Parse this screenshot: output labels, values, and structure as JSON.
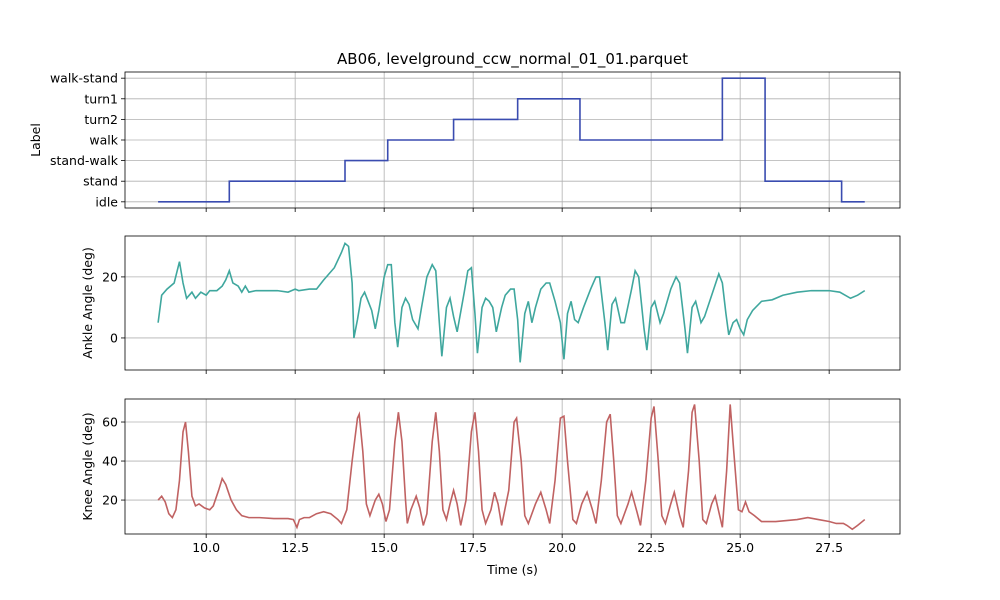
{
  "chart_data": [
    {
      "type": "line",
      "drawstyle": "steps-post",
      "title": "AB06, levelground_ccw_normal_01_01.parquet",
      "ylabel": "Label",
      "color": "#3a4cb0",
      "grid": true,
      "x": [
        8.65,
        10.65,
        13.9,
        15.1,
        16.95,
        18.75,
        20.5,
        24.5,
        25.7,
        27.85,
        28.5
      ],
      "values": [
        0,
        1,
        2,
        3,
        4,
        5,
        3,
        6,
        1,
        0,
        0
      ],
      "xlim": [
        7.72,
        29.49
      ],
      "ylim": [
        -0.3,
        6.3
      ],
      "yticks": [
        {
          "value": 0,
          "label": "idle"
        },
        {
          "value": 1,
          "label": "stand"
        },
        {
          "value": 2,
          "label": "stand-walk"
        },
        {
          "value": 3,
          "label": "walk"
        },
        {
          "value": 4,
          "label": "turn2"
        },
        {
          "value": 5,
          "label": "turn1"
        },
        {
          "value": 6,
          "label": "walk-stand"
        }
      ]
    },
    {
      "type": "line",
      "ylabel": "Ankle Angle (deg)",
      "color": "#3fa79e",
      "grid": true,
      "x": [
        8.65,
        8.75,
        8.9,
        9.1,
        9.25,
        9.35,
        9.45,
        9.6,
        9.7,
        9.85,
        10.0,
        10.1,
        10.3,
        10.45,
        10.55,
        10.65,
        10.75,
        10.9,
        11.0,
        11.1,
        11.2,
        11.4,
        11.7,
        12.0,
        12.3,
        12.5,
        12.6,
        12.9,
        13.1,
        13.3,
        13.6,
        13.8,
        13.9,
        14.0,
        14.1,
        14.15,
        14.25,
        14.35,
        14.45,
        14.55,
        14.65,
        14.75,
        14.85,
        15.0,
        15.1,
        15.2,
        15.3,
        15.38,
        15.5,
        15.6,
        15.7,
        15.8,
        15.95,
        16.05,
        16.2,
        16.35,
        16.45,
        16.55,
        16.62,
        16.75,
        16.85,
        16.95,
        17.05,
        17.25,
        17.35,
        17.45,
        17.55,
        17.62,
        17.75,
        17.85,
        17.95,
        18.05,
        18.15,
        18.3,
        18.4,
        18.55,
        18.65,
        18.75,
        18.82,
        18.95,
        19.05,
        19.15,
        19.25,
        19.4,
        19.55,
        19.65,
        19.8,
        19.95,
        20.05,
        20.15,
        20.25,
        20.35,
        20.45,
        20.6,
        20.8,
        20.95,
        21.05,
        21.2,
        21.28,
        21.4,
        21.5,
        21.65,
        21.75,
        21.95,
        22.05,
        22.15,
        22.3,
        22.38,
        22.5,
        22.6,
        22.75,
        22.85,
        23.05,
        23.2,
        23.3,
        23.45,
        23.52,
        23.65,
        23.75,
        23.9,
        24.0,
        24.2,
        24.4,
        24.5,
        24.6,
        24.68,
        24.8,
        24.9,
        25.0,
        25.1,
        25.2,
        25.35,
        25.6,
        25.9,
        26.2,
        26.6,
        27.0,
        27.5,
        27.8,
        28.1,
        28.3,
        28.5
      ],
      "values": [
        5,
        14,
        16,
        18,
        25,
        18,
        13,
        15,
        13,
        15,
        14,
        15.5,
        15.5,
        17,
        19,
        22,
        18,
        17,
        15,
        17,
        15,
        15.5,
        15.5,
        15.5,
        15,
        16,
        15.5,
        16,
        16,
        19,
        23,
        28,
        31,
        30,
        18,
        0,
        6,
        13,
        15,
        12,
        9,
        3,
        9,
        20,
        24,
        24,
        5,
        -3,
        10,
        13,
        11,
        6,
        3,
        10,
        20,
        24,
        22,
        5,
        -6,
        10,
        13,
        7,
        2,
        15,
        22,
        23,
        8,
        -5,
        10,
        13,
        12,
        10,
        2,
        10,
        14,
        16,
        16,
        6,
        -8,
        8,
        12,
        5,
        10,
        16,
        18,
        18,
        12,
        5,
        -7,
        8,
        12,
        6,
        5,
        10,
        16,
        20,
        20,
        5,
        -4,
        11,
        13,
        5,
        5,
        16,
        22,
        20,
        3,
        -4,
        10,
        12,
        5,
        8,
        16,
        20,
        18,
        3,
        -5,
        10,
        12,
        5,
        7,
        14,
        21,
        18,
        8,
        1,
        5,
        6,
        3,
        1,
        6,
        9,
        12,
        12.5,
        14,
        15,
        15.5,
        15.5,
        15,
        13,
        14,
        15.5
      ],
      "xlim": [
        7.72,
        29.49
      ],
      "ylim": [
        -10.5,
        33.4
      ],
      "yticks": [
        0,
        20
      ]
    },
    {
      "type": "line",
      "ylabel": "Knee Angle (deg)",
      "xlabel": "Time (s)",
      "color": "#c06262",
      "grid": true,
      "x": [
        8.65,
        8.75,
        8.85,
        8.95,
        9.05,
        9.15,
        9.25,
        9.35,
        9.42,
        9.5,
        9.6,
        9.7,
        9.8,
        9.95,
        10.1,
        10.2,
        10.35,
        10.45,
        10.55,
        10.7,
        10.85,
        11.0,
        11.2,
        11.5,
        11.9,
        12.3,
        12.45,
        12.55,
        12.62,
        12.75,
        12.9,
        13.1,
        13.3,
        13.5,
        13.7,
        13.8,
        13.95,
        14.1,
        14.25,
        14.3,
        14.4,
        14.5,
        14.6,
        14.75,
        14.85,
        14.95,
        15.05,
        15.15,
        15.3,
        15.4,
        15.5,
        15.6,
        15.65,
        15.75,
        15.9,
        16.0,
        16.1,
        16.2,
        16.35,
        16.45,
        16.55,
        16.65,
        16.75,
        16.85,
        16.95,
        17.05,
        17.15,
        17.3,
        17.45,
        17.55,
        17.65,
        17.75,
        17.85,
        18.0,
        18.1,
        18.2,
        18.3,
        18.5,
        18.65,
        18.72,
        18.85,
        18.95,
        19.05,
        19.25,
        19.4,
        19.55,
        19.65,
        19.8,
        19.95,
        20.05,
        20.15,
        20.3,
        20.4,
        20.55,
        20.7,
        20.85,
        20.95,
        21.1,
        21.25,
        21.35,
        21.45,
        21.55,
        21.65,
        21.85,
        21.95,
        22.1,
        22.2,
        22.35,
        22.5,
        22.58,
        22.7,
        22.8,
        22.9,
        23.05,
        23.15,
        23.3,
        23.4,
        23.55,
        23.65,
        23.72,
        23.85,
        23.95,
        24.05,
        24.2,
        24.3,
        24.4,
        24.5,
        24.62,
        24.72,
        24.82,
        24.95,
        25.05,
        25.15,
        25.25,
        25.4,
        25.6,
        25.8,
        26.0,
        26.3,
        26.6,
        26.9,
        27.2,
        27.5,
        27.7,
        27.9,
        28.0,
        28.15,
        28.3,
        28.5
      ],
      "values": [
        20,
        22,
        19,
        13,
        11,
        15,
        30,
        55,
        60,
        45,
        22,
        17,
        18,
        16,
        15,
        17,
        25,
        31,
        28,
        20,
        15,
        12,
        11,
        11,
        10.5,
        10.5,
        10,
        6,
        10,
        11,
        11,
        13,
        14,
        13,
        10,
        8,
        15,
        40,
        62,
        64,
        45,
        18,
        12,
        20,
        23,
        18,
        9,
        15,
        50,
        65,
        50,
        20,
        8,
        15,
        22,
        16,
        7,
        13,
        50,
        65,
        45,
        15,
        10,
        18,
        25,
        18,
        7,
        20,
        55,
        65,
        45,
        15,
        8,
        15,
        24,
        18,
        7,
        25,
        60,
        62,
        40,
        12,
        8,
        18,
        24,
        15,
        8,
        30,
        62,
        63,
        40,
        10,
        8,
        18,
        24,
        15,
        8,
        30,
        60,
        64,
        40,
        12,
        8,
        18,
        24,
        14,
        7,
        30,
        62,
        68,
        40,
        12,
        8,
        18,
        24,
        12,
        6,
        35,
        65,
        69,
        40,
        10,
        8,
        18,
        22,
        14,
        6,
        35,
        69,
        45,
        15,
        14,
        19,
        14,
        12,
        9,
        9,
        9,
        9.5,
        10,
        11,
        10,
        9,
        8,
        8,
        7,
        5,
        7,
        10
      ],
      "xlim": [
        7.72,
        29.49
      ],
      "ylim": [
        2.6,
        71.8
      ],
      "yticks": [
        20,
        40,
        60
      ],
      "xticks": [
        {
          "value": 10,
          "label": "10.0"
        },
        {
          "value": 12.5,
          "label": "12.5"
        },
        {
          "value": 15,
          "label": "15.0"
        },
        {
          "value": 17.5,
          "label": "17.5"
        },
        {
          "value": 20,
          "label": "20.0"
        },
        {
          "value": 22.5,
          "label": "22.5"
        },
        {
          "value": 25,
          "label": "25.0"
        },
        {
          "value": 27.5,
          "label": "27.5"
        }
      ]
    }
  ]
}
